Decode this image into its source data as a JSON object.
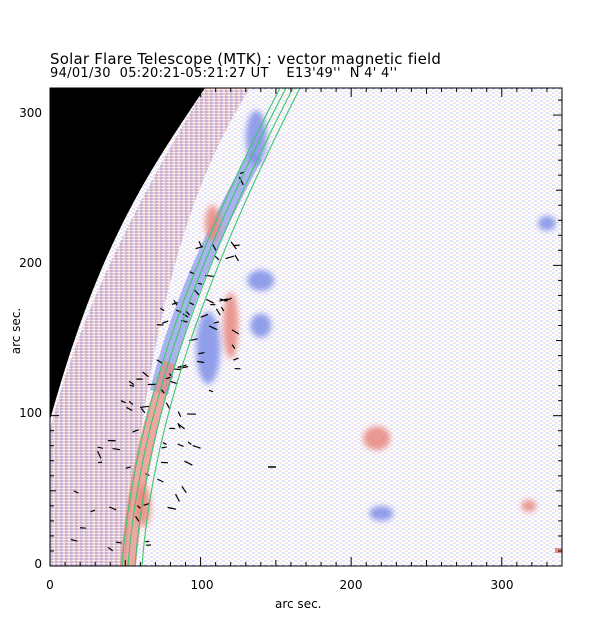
{
  "figure": {
    "title": "Solar Flare Telescope (MTK) : vector magnetic field",
    "subtitle": "94/01/30  05:20:21-05:21:27 UT    E13'49''  N 4' 4''",
    "xlabel": "arc sec.",
    "ylabel": "arc sec.",
    "colors": {
      "positive_polarity": "#e8877f",
      "negative_polarity": "#7f8fe8",
      "limb_contours": "#3cc76a",
      "background_sky": "#000000",
      "transverse_vectors": "#000000"
    }
  },
  "chart_data": {
    "type": "heatmap",
    "title": "Solar Flare Telescope (MTK) : vector magnetic field",
    "xlabel": "arc sec.",
    "ylabel": "arc sec.",
    "xlim": [
      0,
      340
    ],
    "ylim": [
      0,
      318
    ],
    "x_ticks": [
      "0",
      "100",
      "200",
      "300"
    ],
    "y_ticks": [
      "0",
      "100",
      "200",
      "300"
    ],
    "x_tick_values": [
      0,
      100,
      200,
      300
    ],
    "y_tick_values": [
      0,
      100,
      200,
      300
    ],
    "grid": false,
    "legend": "none",
    "polarity_patches": [
      {
        "polarity": "negative",
        "x": 105,
        "y": 145,
        "rx": 8,
        "ry": 24
      },
      {
        "polarity": "negative",
        "x": 137,
        "y": 285,
        "rx": 7,
        "ry": 18
      },
      {
        "polarity": "negative",
        "x": 140,
        "y": 160,
        "rx": 7,
        "ry": 8
      },
      {
        "polarity": "negative",
        "x": 140,
        "y": 190,
        "rx": 9,
        "ry": 7
      },
      {
        "polarity": "positive",
        "x": 120,
        "y": 160,
        "rx": 5,
        "ry": 22
      },
      {
        "polarity": "positive",
        "x": 217,
        "y": 85,
        "rx": 9,
        "ry": 8
      },
      {
        "polarity": "positive",
        "x": 108,
        "y": 228,
        "rx": 5,
        "ry": 12
      },
      {
        "polarity": "positive",
        "x": 62,
        "y": 40,
        "rx": 5,
        "ry": 14
      },
      {
        "polarity": "negative",
        "x": 330,
        "y": 228,
        "rx": 6,
        "ry": 5
      },
      {
        "polarity": "negative",
        "x": 220,
        "y": 35,
        "rx": 8,
        "ry": 5
      },
      {
        "polarity": "positive",
        "x": 318,
        "y": 40,
        "rx": 5,
        "ry": 4
      }
    ]
  }
}
